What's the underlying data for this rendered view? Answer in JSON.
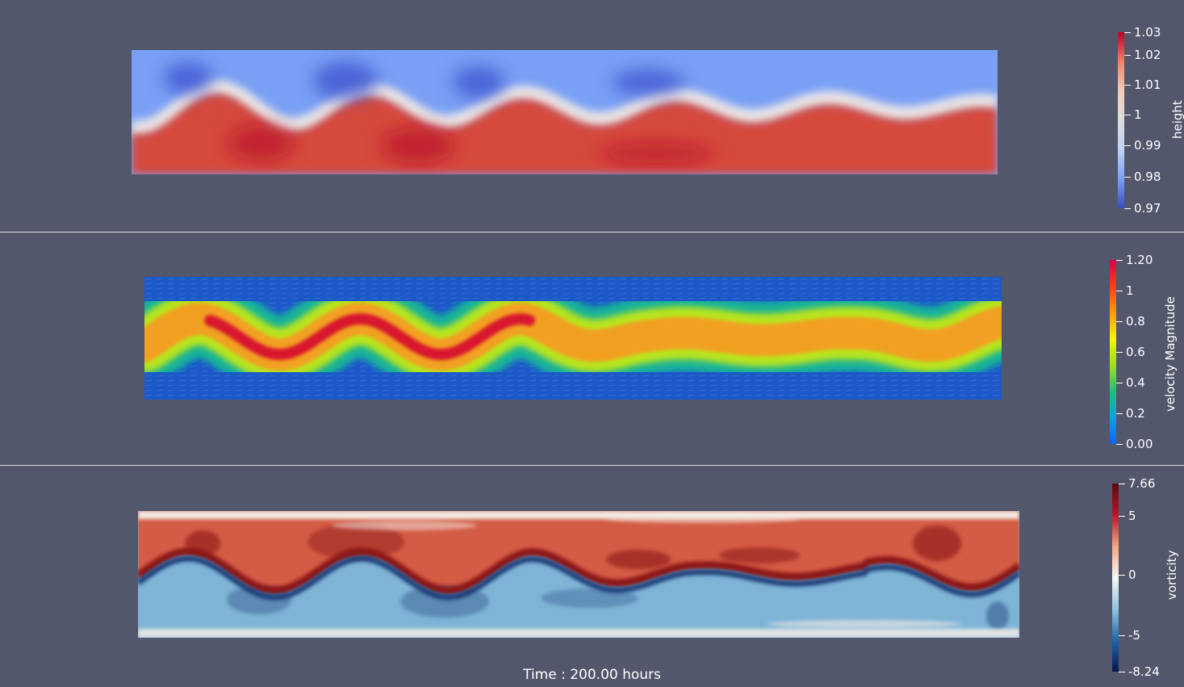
{
  "panels": [
    {
      "id": "height",
      "colorbar_title": "height",
      "colormap": [
        "#3b4cc0",
        "#7b9ff9",
        "#c0d4f5",
        "#dddcdc",
        "#f2cbb7",
        "#ee8468",
        "#b40426"
      ],
      "ticks": [
        "1.03",
        "1.02",
        "1.01",
        "1",
        "0.99",
        "0.98",
        "0.97"
      ],
      "field_colors": {
        "upper": "#7aa0f5",
        "lower": "#d6493e",
        "band": "#e8e4e6",
        "accent_low": "#3d55d0",
        "accent_high": "#b8102a"
      }
    },
    {
      "id": "velocity",
      "colorbar_title": "velocity Magnitude",
      "colormap": [
        "#1560ff",
        "#0aa3e0",
        "#1fbf7a",
        "#9fe01a",
        "#f7f20a",
        "#ff9a0a",
        "#ff3a1a",
        "#d8004a"
      ],
      "ticks": [
        "1.20",
        "1",
        "0.8",
        "0.6",
        "0.4",
        "0.2",
        "0.00"
      ],
      "field_colors": {
        "background": "#1b58c8",
        "halo": "#18b39a",
        "ring": "#b8e41c",
        "core": "#f2a020",
        "peak": "#d8172d"
      }
    },
    {
      "id": "vorticity",
      "colorbar_title": "vorticity",
      "colormap": [
        "#08164a",
        "#2166ac",
        "#92c5de",
        "#f7f7f7",
        "#f4a582",
        "#b2182b",
        "#5a0a12"
      ],
      "ticks": [
        "7.66",
        "5",
        "0",
        "-5",
        "-8.24"
      ],
      "field_colors": {
        "upper": "#d35c44",
        "lower": "#7fb4d6",
        "light": "#f4ece6",
        "dark_pos": "#8b1218",
        "dark_neg": "#1b3d78"
      }
    }
  ],
  "time_label": "Time : 200.00 hours"
}
